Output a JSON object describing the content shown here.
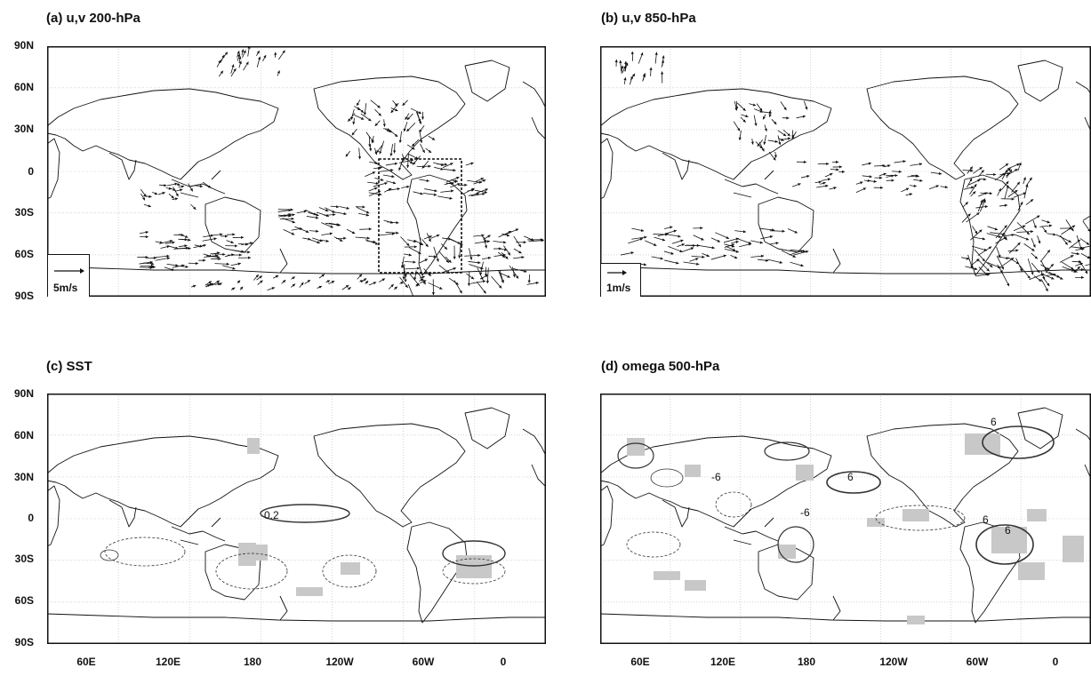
{
  "panels": {
    "a": {
      "title": "(a) u,v 200-hPa",
      "legend": "5m/s"
    },
    "b": {
      "title": "(b) u,v 850-hPa",
      "legend": "1m/s"
    },
    "c": {
      "title": "(c) SST",
      "contour_label": "0.2"
    },
    "d": {
      "title": "(d) omega 500-hPa",
      "contour_labels": [
        "6",
        "-6",
        "6",
        "-6",
        "6",
        "6"
      ]
    }
  },
  "lat_labels": [
    "90N",
    "60N",
    "30N",
    "0",
    "30S",
    "60S",
    "90S"
  ],
  "lon_labels": [
    "60E",
    "120E",
    "180",
    "120W",
    "60W",
    "0"
  ]
}
